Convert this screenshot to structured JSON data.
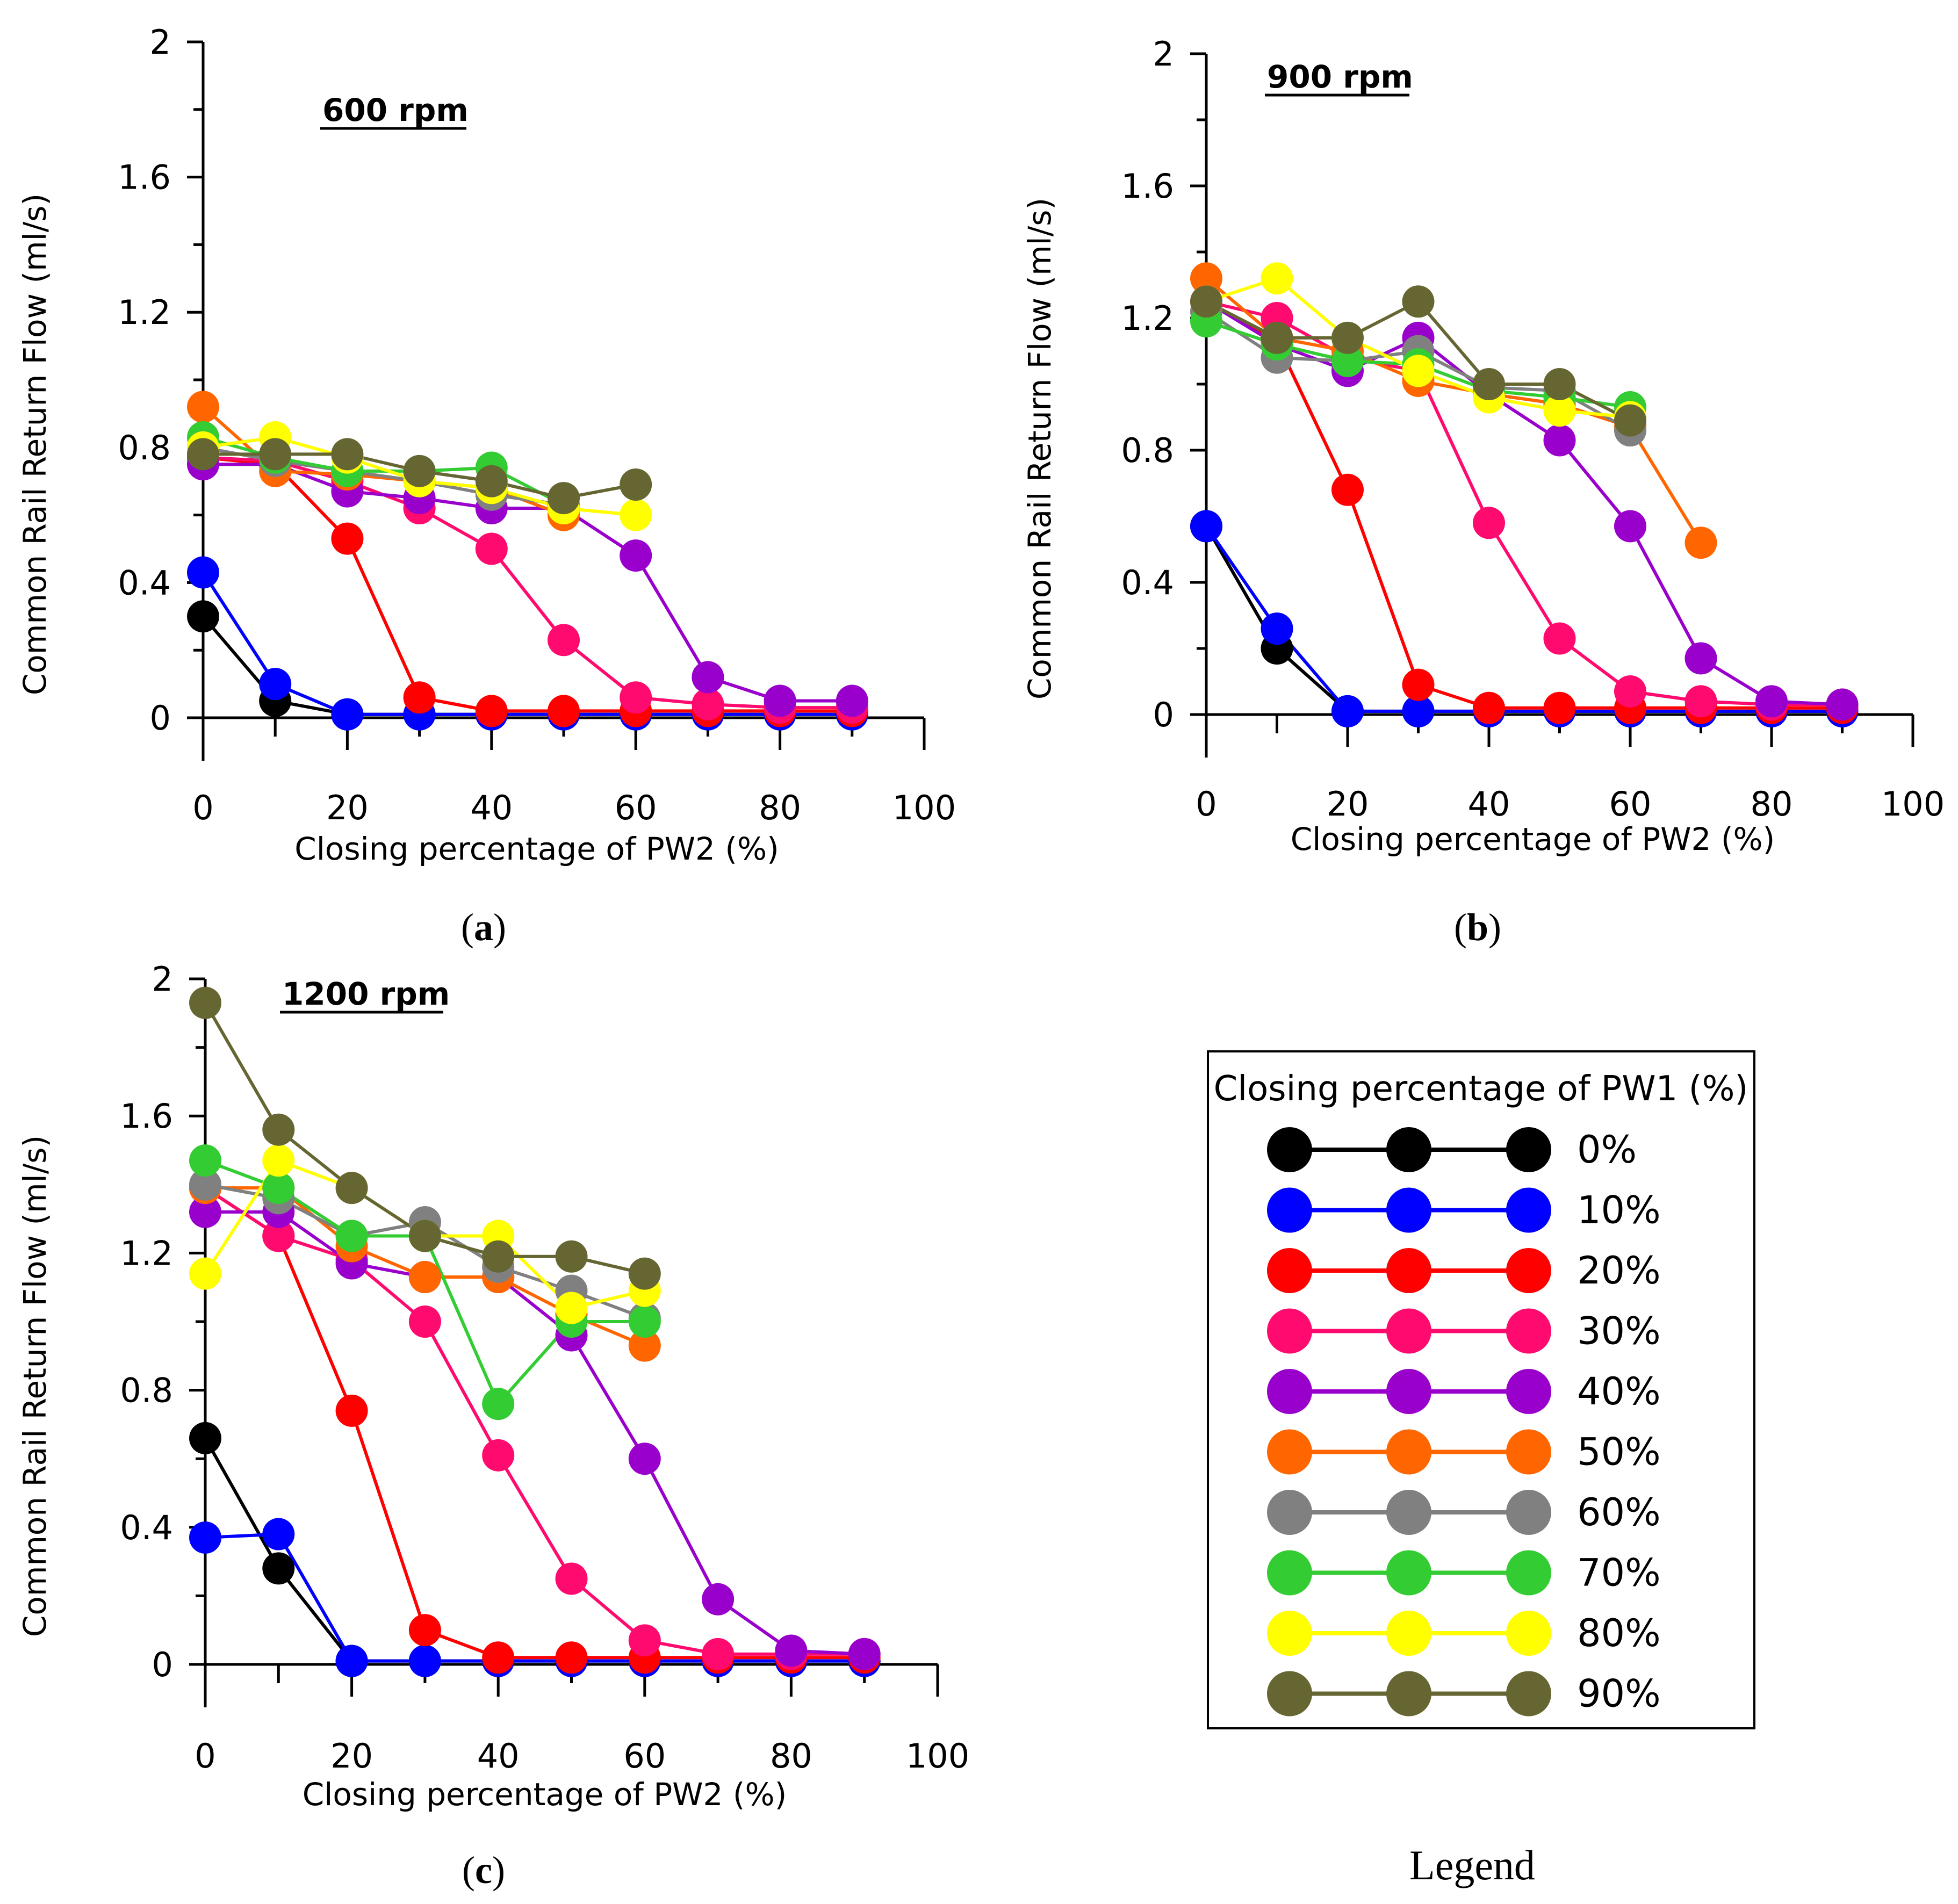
{
  "figure_caption": "Legend",
  "legend": {
    "title": "Closing percentage of PW1 (%)",
    "entries": [
      "0%",
      "10%",
      "20%",
      "30%",
      "40%",
      "50%",
      "60%",
      "70%",
      "80%",
      "90%"
    ],
    "colors": [
      "#000000",
      "#0000ff",
      "#ff0000",
      "#ff0a6e",
      "#9900cc",
      "#ff6600",
      "#808080",
      "#33cc33",
      "#ffff00",
      "#666633"
    ]
  },
  "chart_data": [
    {
      "type": "line",
      "panel_label": "a",
      "annotation": "600 rpm",
      "xlabel": "Closing percentage of PW2 (%)",
      "ylabel": "Common Rail Return Flow (ml/s)",
      "xlim": [
        0,
        100
      ],
      "ylim": [
        0,
        2
      ],
      "xticks": [
        "0",
        "20",
        "40",
        "60",
        "80",
        "100"
      ],
      "yticks": [
        "0",
        "0.4",
        "0.8",
        "1.2",
        "1.6",
        "2"
      ],
      "series": [
        {
          "name": "0%",
          "x": [
            0,
            10,
            20,
            30,
            40,
            50,
            60,
            70,
            80,
            90
          ],
          "y": [
            0.3,
            0.05,
            0.01,
            0.01,
            0.01,
            0.01,
            0.01,
            0.01,
            0.01,
            0.01
          ]
        },
        {
          "name": "10%",
          "x": [
            0,
            10,
            20,
            30,
            40,
            50,
            60,
            70,
            80,
            90
          ],
          "y": [
            0.43,
            0.1,
            0.01,
            0.01,
            0.01,
            0.01,
            0.01,
            0.01,
            0.01,
            0.01
          ]
        },
        {
          "name": "20%",
          "x": [
            0,
            10,
            20,
            30,
            40,
            50,
            60,
            70,
            80,
            90
          ],
          "y": [
            0.77,
            0.75,
            0.53,
            0.06,
            0.02,
            0.02,
            0.02,
            0.02,
            0.02,
            0.02
          ]
        },
        {
          "name": "30%",
          "x": [
            0,
            10,
            20,
            30,
            40,
            50,
            60,
            70,
            80,
            90
          ],
          "y": [
            0.77,
            0.76,
            0.7,
            0.62,
            0.5,
            0.23,
            0.06,
            0.04,
            0.03,
            0.03
          ]
        },
        {
          "name": "40%",
          "x": [
            0,
            10,
            20,
            30,
            40,
            50,
            60,
            70,
            80,
            90
          ],
          "y": [
            0.75,
            0.75,
            0.67,
            0.65,
            0.62,
            0.62,
            0.48,
            0.12,
            0.05,
            0.05
          ]
        },
        {
          "name": "50%",
          "x": [
            0,
            10,
            20,
            30,
            40,
            50
          ],
          "y": [
            0.92,
            0.73,
            0.72,
            0.7,
            0.68,
            0.6
          ]
        },
        {
          "name": "60%",
          "x": [
            0,
            10,
            20,
            30,
            40,
            50
          ],
          "y": [
            0.8,
            0.76,
            0.73,
            0.7,
            0.66,
            0.63
          ]
        },
        {
          "name": "70%",
          "x": [
            0,
            10,
            20,
            30,
            40,
            50
          ],
          "y": [
            0.83,
            0.77,
            0.73,
            0.73,
            0.74,
            0.63
          ]
        },
        {
          "name": "80%",
          "x": [
            0,
            10,
            20,
            30,
            40,
            50,
            60
          ],
          "y": [
            0.8,
            0.83,
            0.77,
            0.7,
            0.68,
            0.62,
            0.6
          ]
        },
        {
          "name": "90%",
          "x": [
            0,
            10,
            20,
            30,
            40,
            50,
            60
          ],
          "y": [
            0.78,
            0.78,
            0.78,
            0.73,
            0.7,
            0.65,
            0.69
          ]
        }
      ]
    },
    {
      "type": "line",
      "panel_label": "b",
      "annotation": "900 rpm",
      "xlabel": "Closing percentage of PW2 (%)",
      "ylabel": "Common Rail Return Flow (ml/s)",
      "xlim": [
        0,
        100
      ],
      "ylim": [
        0,
        2
      ],
      "xticks": [
        "0",
        "20",
        "40",
        "60",
        "80",
        "100"
      ],
      "yticks": [
        "0",
        "0.4",
        "0.8",
        "1.2",
        "1.6",
        "2"
      ],
      "series": [
        {
          "name": "0%",
          "x": [
            0,
            10,
            20,
            30,
            40,
            50,
            60,
            70,
            80,
            90
          ],
          "y": [
            0.57,
            0.2,
            0.01,
            0.01,
            0.01,
            0.01,
            0.01,
            0.01,
            0.01,
            0.01
          ]
        },
        {
          "name": "10%",
          "x": [
            0,
            10,
            20,
            30,
            40,
            50,
            60,
            70,
            80,
            90
          ],
          "y": [
            0.57,
            0.26,
            0.01,
            0.01,
            0.01,
            0.01,
            0.01,
            0.01,
            0.01,
            0.01
          ]
        },
        {
          "name": "20%",
          "x": [
            0,
            10,
            20,
            30,
            40,
            50,
            60,
            70,
            80,
            90
          ],
          "y": [
            1.25,
            1.13,
            0.68,
            0.09,
            0.02,
            0.02,
            0.02,
            0.02,
            0.02,
            0.02
          ]
        },
        {
          "name": "30%",
          "x": [
            0,
            10,
            20,
            30,
            40,
            50,
            60,
            70,
            80,
            90
          ],
          "y": [
            1.25,
            1.2,
            1.08,
            1.04,
            0.58,
            0.23,
            0.07,
            0.04,
            0.03,
            0.03
          ]
        },
        {
          "name": "40%",
          "x": [
            0,
            10,
            20,
            30,
            40,
            50,
            60,
            70,
            80,
            90
          ],
          "y": [
            1.25,
            1.12,
            1.04,
            1.14,
            0.97,
            0.83,
            0.57,
            0.17,
            0.04,
            0.03
          ]
        },
        {
          "name": "50%",
          "x": [
            0,
            10,
            20,
            30,
            40,
            50,
            60,
            70
          ],
          "y": [
            1.32,
            1.14,
            1.1,
            1.01,
            0.97,
            0.94,
            0.87,
            0.52
          ]
        },
        {
          "name": "60%",
          "x": [
            0,
            10,
            20,
            30,
            40,
            50,
            60
          ],
          "y": [
            1.22,
            1.08,
            1.07,
            1.1,
            0.99,
            0.98,
            0.86
          ]
        },
        {
          "name": "70%",
          "x": [
            0,
            10,
            20,
            30,
            40,
            50,
            60
          ],
          "y": [
            1.19,
            1.12,
            1.07,
            1.06,
            0.98,
            0.96,
            0.93
          ]
        },
        {
          "name": "80%",
          "x": [
            0,
            10,
            20,
            30,
            40,
            50,
            60
          ],
          "y": [
            1.25,
            1.32,
            1.14,
            1.04,
            0.96,
            0.92,
            0.9
          ]
        },
        {
          "name": "90%",
          "x": [
            0,
            10,
            20,
            30,
            40,
            50,
            60
          ],
          "y": [
            1.25,
            1.14,
            1.14,
            1.25,
            1.0,
            1.0,
            0.89
          ]
        }
      ]
    },
    {
      "type": "line",
      "panel_label": "c",
      "annotation": "1200 rpm",
      "xlabel": "Closing percentage of PW2 (%)",
      "ylabel": "Common Rail Return Flow (ml/s)",
      "xlim": [
        0,
        100
      ],
      "ylim": [
        0,
        2
      ],
      "xticks": [
        "0",
        "20",
        "40",
        "60",
        "80",
        "100"
      ],
      "yticks": [
        "0",
        "0.4",
        "0.8",
        "1.2",
        "1.6",
        "2"
      ],
      "series": [
        {
          "name": "0%",
          "x": [
            0,
            10,
            20,
            30,
            40,
            50,
            60,
            70,
            80,
            90
          ],
          "y": [
            0.66,
            0.28,
            0.01,
            0.01,
            0.01,
            0.01,
            0.01,
            0.01,
            0.01,
            0.01
          ]
        },
        {
          "name": "10%",
          "x": [
            0,
            10,
            20,
            30,
            40,
            50,
            60,
            70,
            80,
            90
          ],
          "y": [
            0.37,
            0.38,
            0.01,
            0.01,
            0.01,
            0.01,
            0.01,
            0.01,
            0.01,
            0.01
          ]
        },
        {
          "name": "20%",
          "x": [
            0,
            10,
            20,
            30,
            40,
            50,
            60,
            70,
            80,
            90
          ],
          "y": [
            1.39,
            1.25,
            0.74,
            0.1,
            0.02,
            0.02,
            0.02,
            0.02,
            0.02,
            0.02
          ]
        },
        {
          "name": "30%",
          "x": [
            0,
            10,
            20,
            30,
            40,
            50,
            60,
            70,
            80,
            90
          ],
          "y": [
            1.39,
            1.25,
            1.18,
            1.0,
            0.61,
            0.25,
            0.07,
            0.03,
            0.03,
            0.03
          ]
        },
        {
          "name": "40%",
          "x": [
            0,
            10,
            20,
            30,
            40,
            50,
            60,
            70,
            80,
            90
          ],
          "y": [
            1.32,
            1.32,
            1.17,
            1.13,
            1.13,
            0.96,
            0.6,
            0.19,
            0.04,
            0.03
          ]
        },
        {
          "name": "50%",
          "x": [
            0,
            10,
            20,
            30,
            40,
            50,
            60
          ],
          "y": [
            1.39,
            1.39,
            1.22,
            1.13,
            1.13,
            1.02,
            0.93
          ]
        },
        {
          "name": "60%",
          "x": [
            0,
            10,
            20,
            30,
            40,
            50,
            60
          ],
          "y": [
            1.4,
            1.36,
            1.25,
            1.29,
            1.16,
            1.09,
            1.01
          ]
        },
        {
          "name": "70%",
          "x": [
            0,
            10,
            20,
            30,
            40,
            50,
            60
          ],
          "y": [
            1.47,
            1.39,
            1.25,
            1.25,
            0.76,
            1.0,
            1.0
          ]
        },
        {
          "name": "80%",
          "x": [
            0,
            10,
            20,
            30,
            40,
            50,
            60
          ],
          "y": [
            1.14,
            1.47,
            1.39,
            1.25,
            1.25,
            1.04,
            1.09
          ]
        },
        {
          "name": "90%",
          "x": [
            0,
            10,
            20,
            30,
            40,
            50,
            60
          ],
          "y": [
            1.93,
            1.56,
            1.39,
            1.25,
            1.19,
            1.19,
            1.14
          ]
        }
      ]
    }
  ]
}
